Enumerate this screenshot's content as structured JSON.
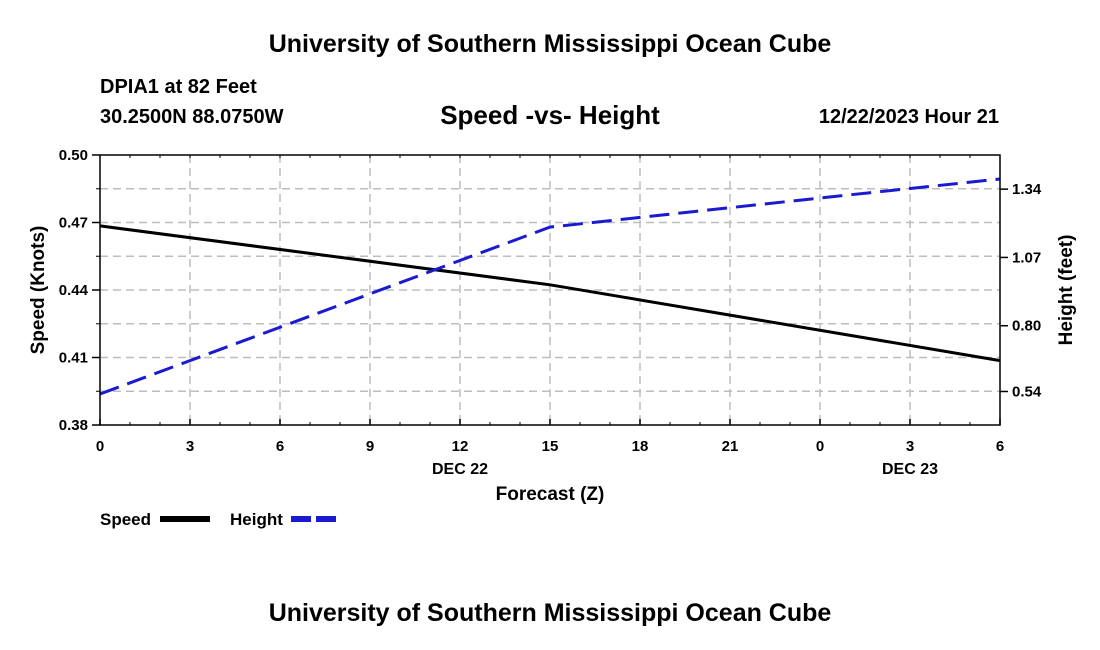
{
  "header": {
    "title": "University of Southern Mississippi Ocean Cube",
    "station": "DPIA1 at 82 Feet",
    "coords": "30.2500N  88.0750W",
    "subtitle": "Speed -vs- Height",
    "timestamp": "12/22/2023 Hour 21"
  },
  "footer": {
    "title": "University of Southern Mississippi Ocean Cube"
  },
  "legend": {
    "speed_label": "Speed",
    "height_label": "Height"
  },
  "colors": {
    "speed": "#000000",
    "height": "#1a1ad0",
    "grid": "#bdbdbd"
  },
  "chart_data": {
    "type": "line",
    "title": "Speed -vs- Height",
    "xlabel": "Forecast (Z)",
    "ylabel_left": "Speed (Knots)",
    "ylabel_right": "Height (feet)",
    "x": [
      0,
      3,
      6,
      9,
      12,
      15,
      18,
      21,
      24,
      27,
      30
    ],
    "x_tick_labels": [
      "0",
      "3",
      "6",
      "9",
      "12",
      "15",
      "18",
      "21",
      "0",
      "3",
      "6"
    ],
    "date_labels": [
      {
        "at": 12,
        "label": "DEC 22"
      },
      {
        "at": 27,
        "label": "DEC 23"
      }
    ],
    "xlim": [
      0,
      30
    ],
    "ylim_left": [
      0.38,
      0.5
    ],
    "ylim_right": [
      0.4075,
      1.475
    ],
    "yticks_left": [
      "0.38",
      "0.41",
      "0.44",
      "0.47",
      "0.50"
    ],
    "yticks_right": [
      "0.54",
      "0.80",
      "1.07",
      "1.34"
    ],
    "grid": true,
    "series": [
      {
        "name": "Speed",
        "axis": "left",
        "style": "solid",
        "x": [
          0,
          15,
          30
        ],
        "values": [
          0.4685,
          0.4423,
          0.4086
        ]
      },
      {
        "name": "Height",
        "axis": "right",
        "style": "dashed",
        "x": [
          0,
          15,
          24,
          30
        ],
        "values": [
          0.53,
          1.19,
          1.305,
          1.38
        ]
      }
    ]
  }
}
